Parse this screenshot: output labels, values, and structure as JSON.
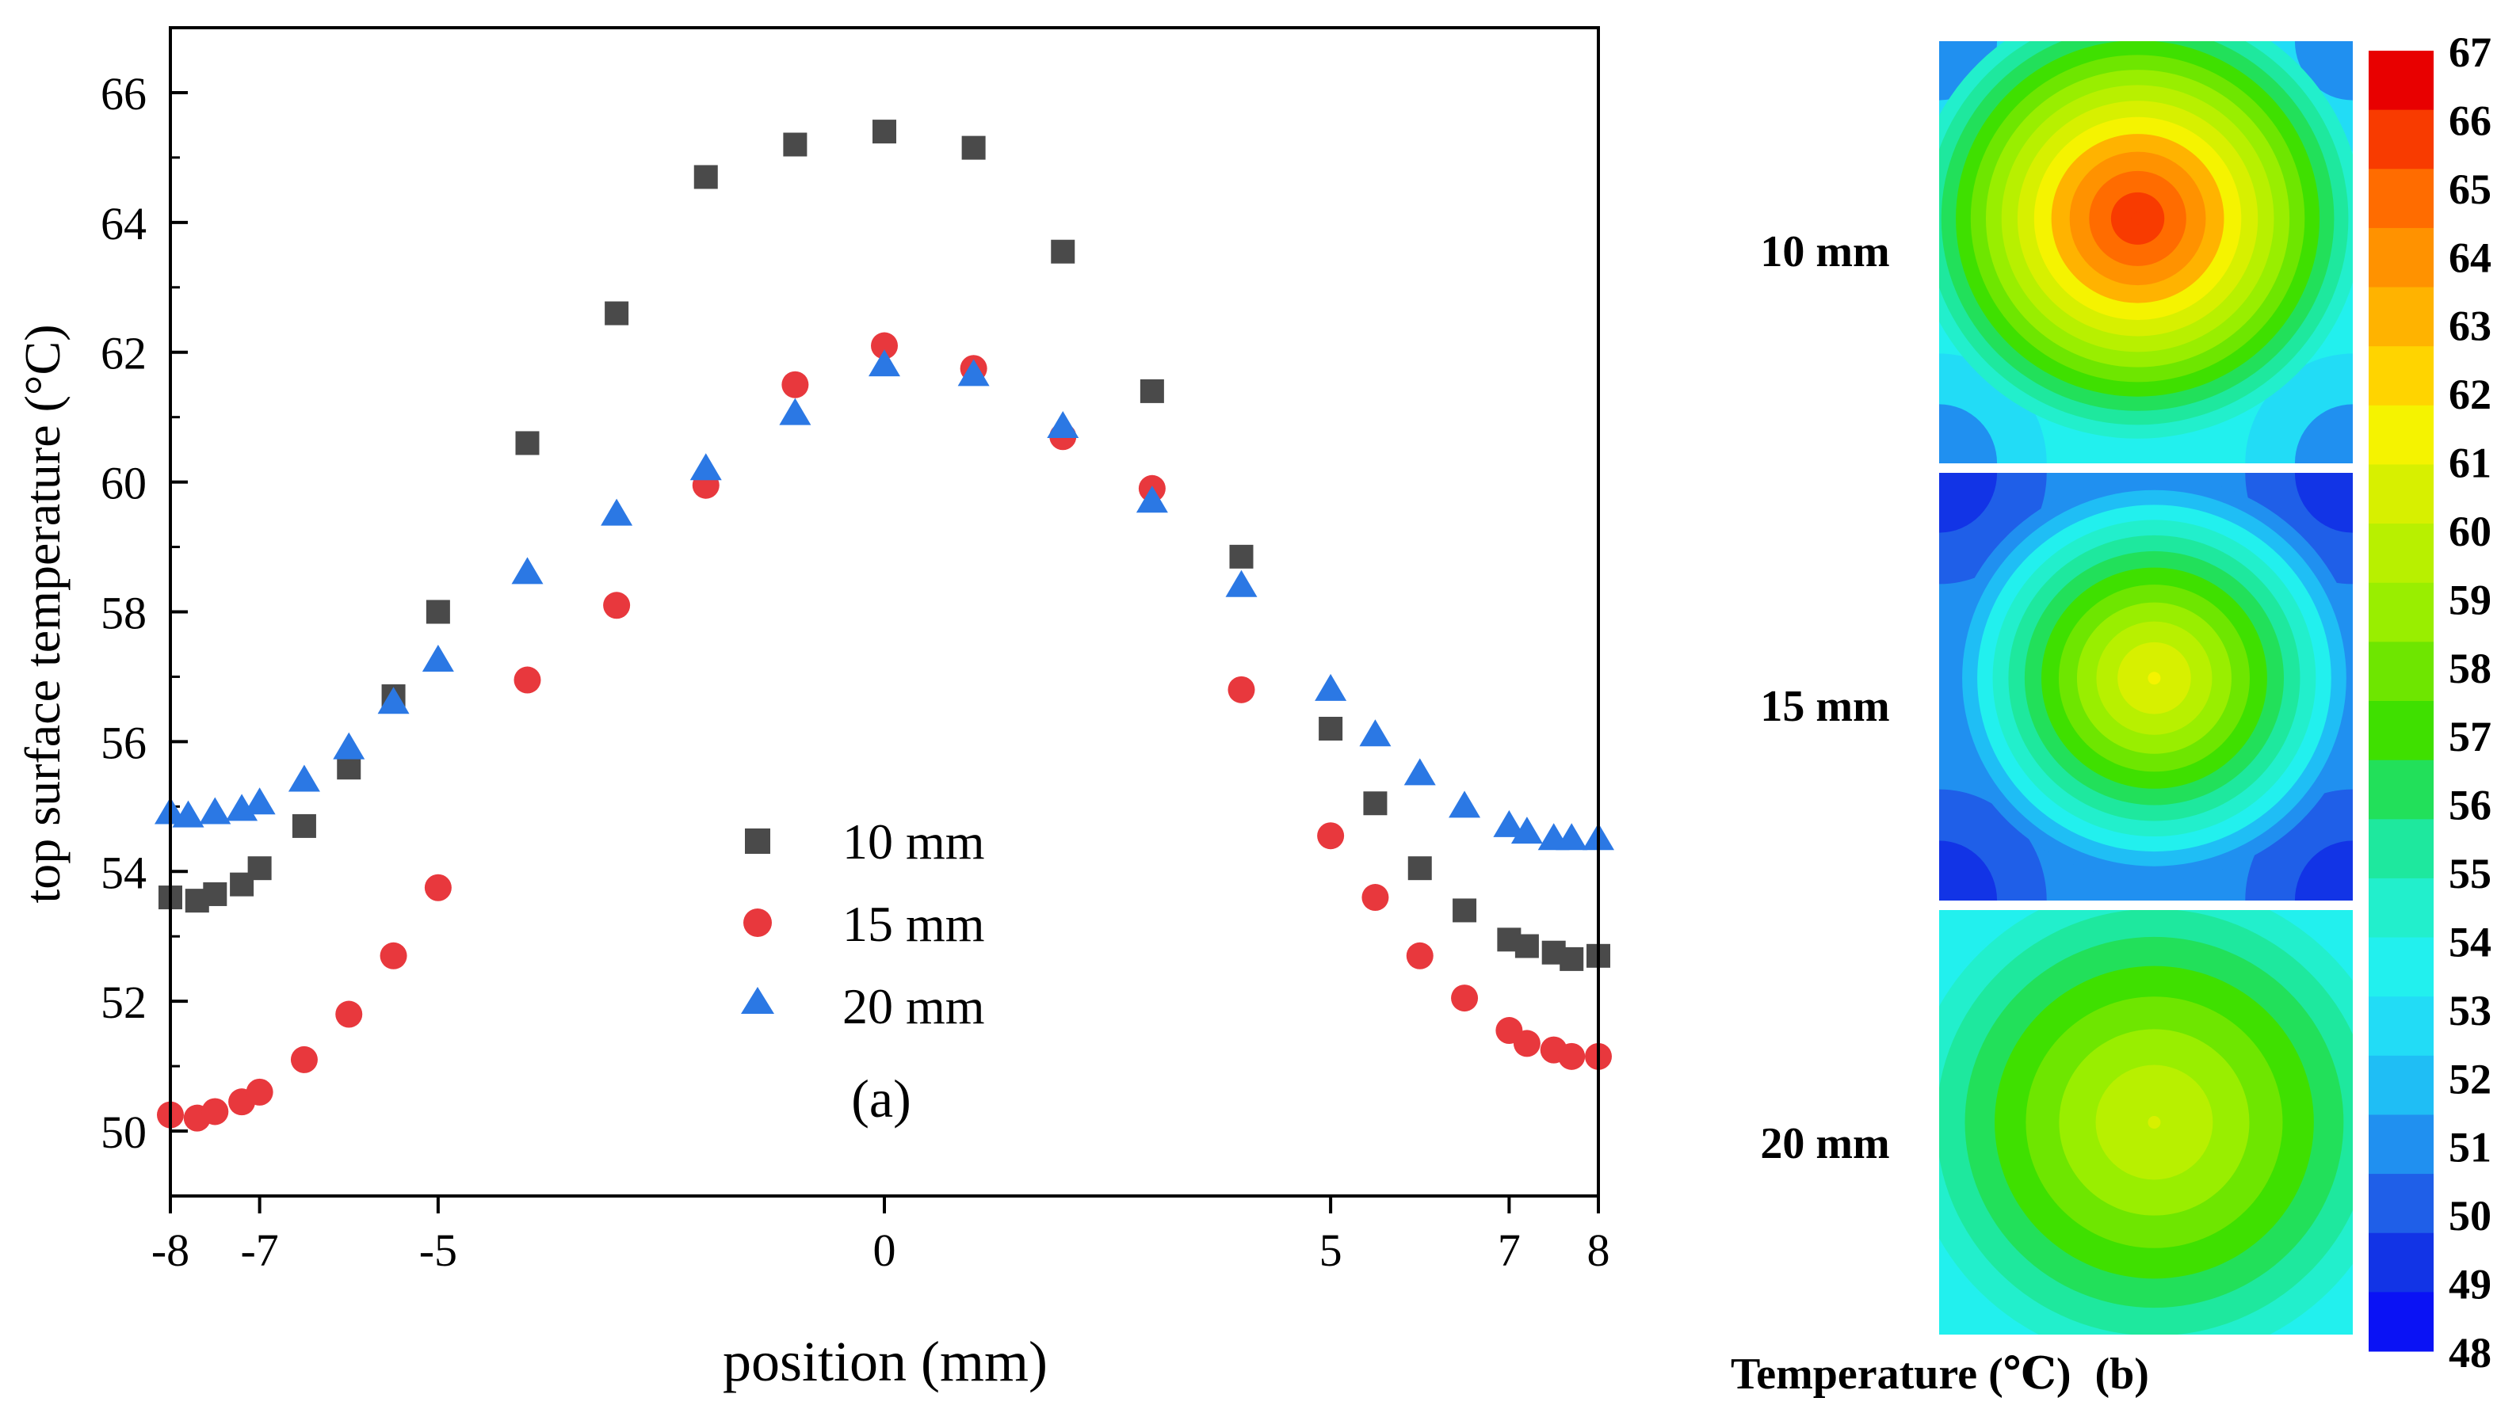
{
  "chart_data": [
    {
      "type": "scatter",
      "panel_label": "(a)",
      "xlabel": "position (mm)",
      "ylabel": "top surface temperature (°C)",
      "xlim": [
        -8,
        8
      ],
      "ylim": [
        49,
        67
      ],
      "x_ticks": [
        -8,
        -7,
        -5,
        0,
        5,
        7,
        8
      ],
      "x_tick_labels": [
        "-8",
        "-7",
        "-5",
        "0",
        "5",
        "7",
        "8"
      ],
      "y_ticks": [
        50,
        52,
        54,
        56,
        58,
        60,
        62,
        64,
        66
      ],
      "y_tick_labels": [
        "50",
        "52",
        "54",
        "56",
        "58",
        "60",
        "62",
        "64",
        "66"
      ],
      "legend_position": "lower-center",
      "series": [
        {
          "name": "10 mm",
          "marker": "square",
          "color": "#4a4a4a",
          "x": [
            -8,
            -7.7,
            -7.5,
            -7.2,
            -7,
            -6.5,
            -6,
            -5.5,
            -5,
            -4,
            -3,
            -2,
            -1,
            0,
            1,
            2,
            3,
            4,
            5,
            5.5,
            6,
            6.5,
            7,
            7.2,
            7.5,
            7.7,
            8
          ],
          "y": [
            53.6,
            53.55,
            53.65,
            53.8,
            54.05,
            54.7,
            55.6,
            56.7,
            58.0,
            60.6,
            62.6,
            64.7,
            65.2,
            65.4,
            65.15,
            63.55,
            61.4,
            58.85,
            56.2,
            55.05,
            54.05,
            53.4,
            52.95,
            52.85,
            52.75,
            52.65,
            52.7
          ]
        },
        {
          "name": "15 mm",
          "marker": "circle",
          "color": "#e8383d",
          "x": [
            -8,
            -7.7,
            -7.5,
            -7.2,
            -7,
            -6.5,
            -6,
            -5.5,
            -5,
            -4,
            -3,
            -2,
            -1,
            0,
            1,
            2,
            3,
            4,
            5,
            5.5,
            6,
            6.5,
            7,
            7.2,
            7.5,
            7.7,
            8
          ],
          "y": [
            50.25,
            50.2,
            50.3,
            50.45,
            50.6,
            51.1,
            51.8,
            52.7,
            53.75,
            56.95,
            58.1,
            59.95,
            61.5,
            62.1,
            61.75,
            60.7,
            59.9,
            56.8,
            54.55,
            53.6,
            52.7,
            52.05,
            51.55,
            51.35,
            51.25,
            51.15,
            51.15
          ]
        },
        {
          "name": "20 mm",
          "marker": "triangle",
          "color": "#2b78e4",
          "x": [
            -8,
            -7.8,
            -7.5,
            -7.2,
            -7,
            -6.5,
            -6,
            -5.5,
            -5,
            -4,
            -3,
            -2,
            -1,
            0,
            1,
            2,
            3,
            4,
            5,
            5.5,
            6,
            6.5,
            7,
            7.2,
            7.5,
            7.7,
            8
          ],
          "y": [
            54.9,
            54.85,
            54.9,
            54.95,
            55.05,
            55.4,
            55.9,
            56.6,
            57.25,
            58.6,
            59.5,
            60.2,
            61.05,
            61.8,
            61.65,
            60.85,
            59.7,
            58.4,
            56.8,
            56.1,
            55.5,
            55.0,
            54.7,
            54.6,
            54.5,
            54.5,
            54.5
          ]
        }
      ]
    },
    {
      "type": "heatmap",
      "panel_label": "(b)",
      "colorbar_title": "Temperature (℃)",
      "colorbar_range": [
        48,
        67
      ],
      "colorbar_ticks": [
        "67",
        "66",
        "65",
        "64",
        "63",
        "62",
        "61",
        "60",
        "59",
        "58",
        "57",
        "56",
        "55",
        "54",
        "53",
        "52",
        "51",
        "50",
        "49",
        "48"
      ],
      "colorbar_colors": [
        "#e80000",
        "#f83b00",
        "#ff6c00",
        "#ff9200",
        "#ffb300",
        "#ffd400",
        "#f5f300",
        "#d7f000",
        "#b8f000",
        "#99ee00",
        "#6ee600",
        "#3fe000",
        "#22e05a",
        "#1ee89e",
        "#22efcc",
        "#22f0ee",
        "#22dcf6",
        "#1fbef5",
        "#2090f0",
        "#1f5fe8",
        "#1234e6",
        "#0a12f5"
      ],
      "maps": [
        {
          "label": "10 mm",
          "corner_temp": 50.5,
          "edge_temp": 53.8,
          "peak_temp": 66.3
        },
        {
          "label": "15 mm",
          "corner_temp": 49.0,
          "edge_temp": 51.0,
          "peak_temp": 61.7
        },
        {
          "label": "20 mm",
          "corner_temp": 53.3,
          "edge_temp": 53.6,
          "peak_temp": 60.6
        }
      ]
    }
  ]
}
